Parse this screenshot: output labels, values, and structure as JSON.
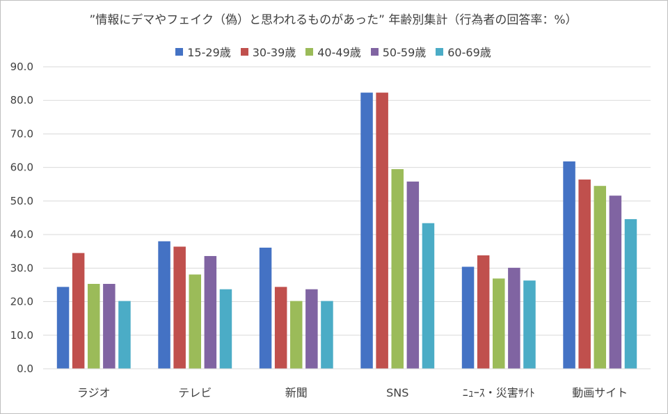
{
  "chart_data": {
    "type": "bar",
    "title": "”情報にデマやフェイク（偽）と思われるものがあった” 年齢別集計（行為者の回答率：%）",
    "categories": [
      "ラジオ",
      "テレビ",
      "新聞",
      "SNS",
      "ﾆｭｰｽ・災害ｻｲﾄ",
      "動画サイト"
    ],
    "series": [
      {
        "name": "15-29歳",
        "color": "#4472C4",
        "values": [
          24.4,
          38.0,
          36.1,
          82.3,
          30.4,
          61.8
        ]
      },
      {
        "name": "30-39歳",
        "color": "#C0504D",
        "values": [
          34.5,
          36.4,
          24.4,
          82.3,
          33.8,
          56.4
        ]
      },
      {
        "name": "40-49歳",
        "color": "#9BBB59",
        "values": [
          25.3,
          28.1,
          20.2,
          59.5,
          26.9,
          54.5
        ]
      },
      {
        "name": "50-59歳",
        "color": "#8064A2",
        "values": [
          25.3,
          33.6,
          23.7,
          55.8,
          30.1,
          51.6
        ]
      },
      {
        "name": "60-69歳",
        "color": "#4BACC6",
        "values": [
          20.2,
          23.7,
          20.2,
          43.4,
          26.3,
          44.6
        ]
      }
    ],
    "ylim": [
      0,
      90
    ],
    "yticks": [
      "0.0",
      "10.0",
      "20.0",
      "30.0",
      "40.0",
      "50.0",
      "60.0",
      "70.0",
      "80.0",
      "90.0"
    ],
    "grid": true,
    "legend_position": "top"
  }
}
